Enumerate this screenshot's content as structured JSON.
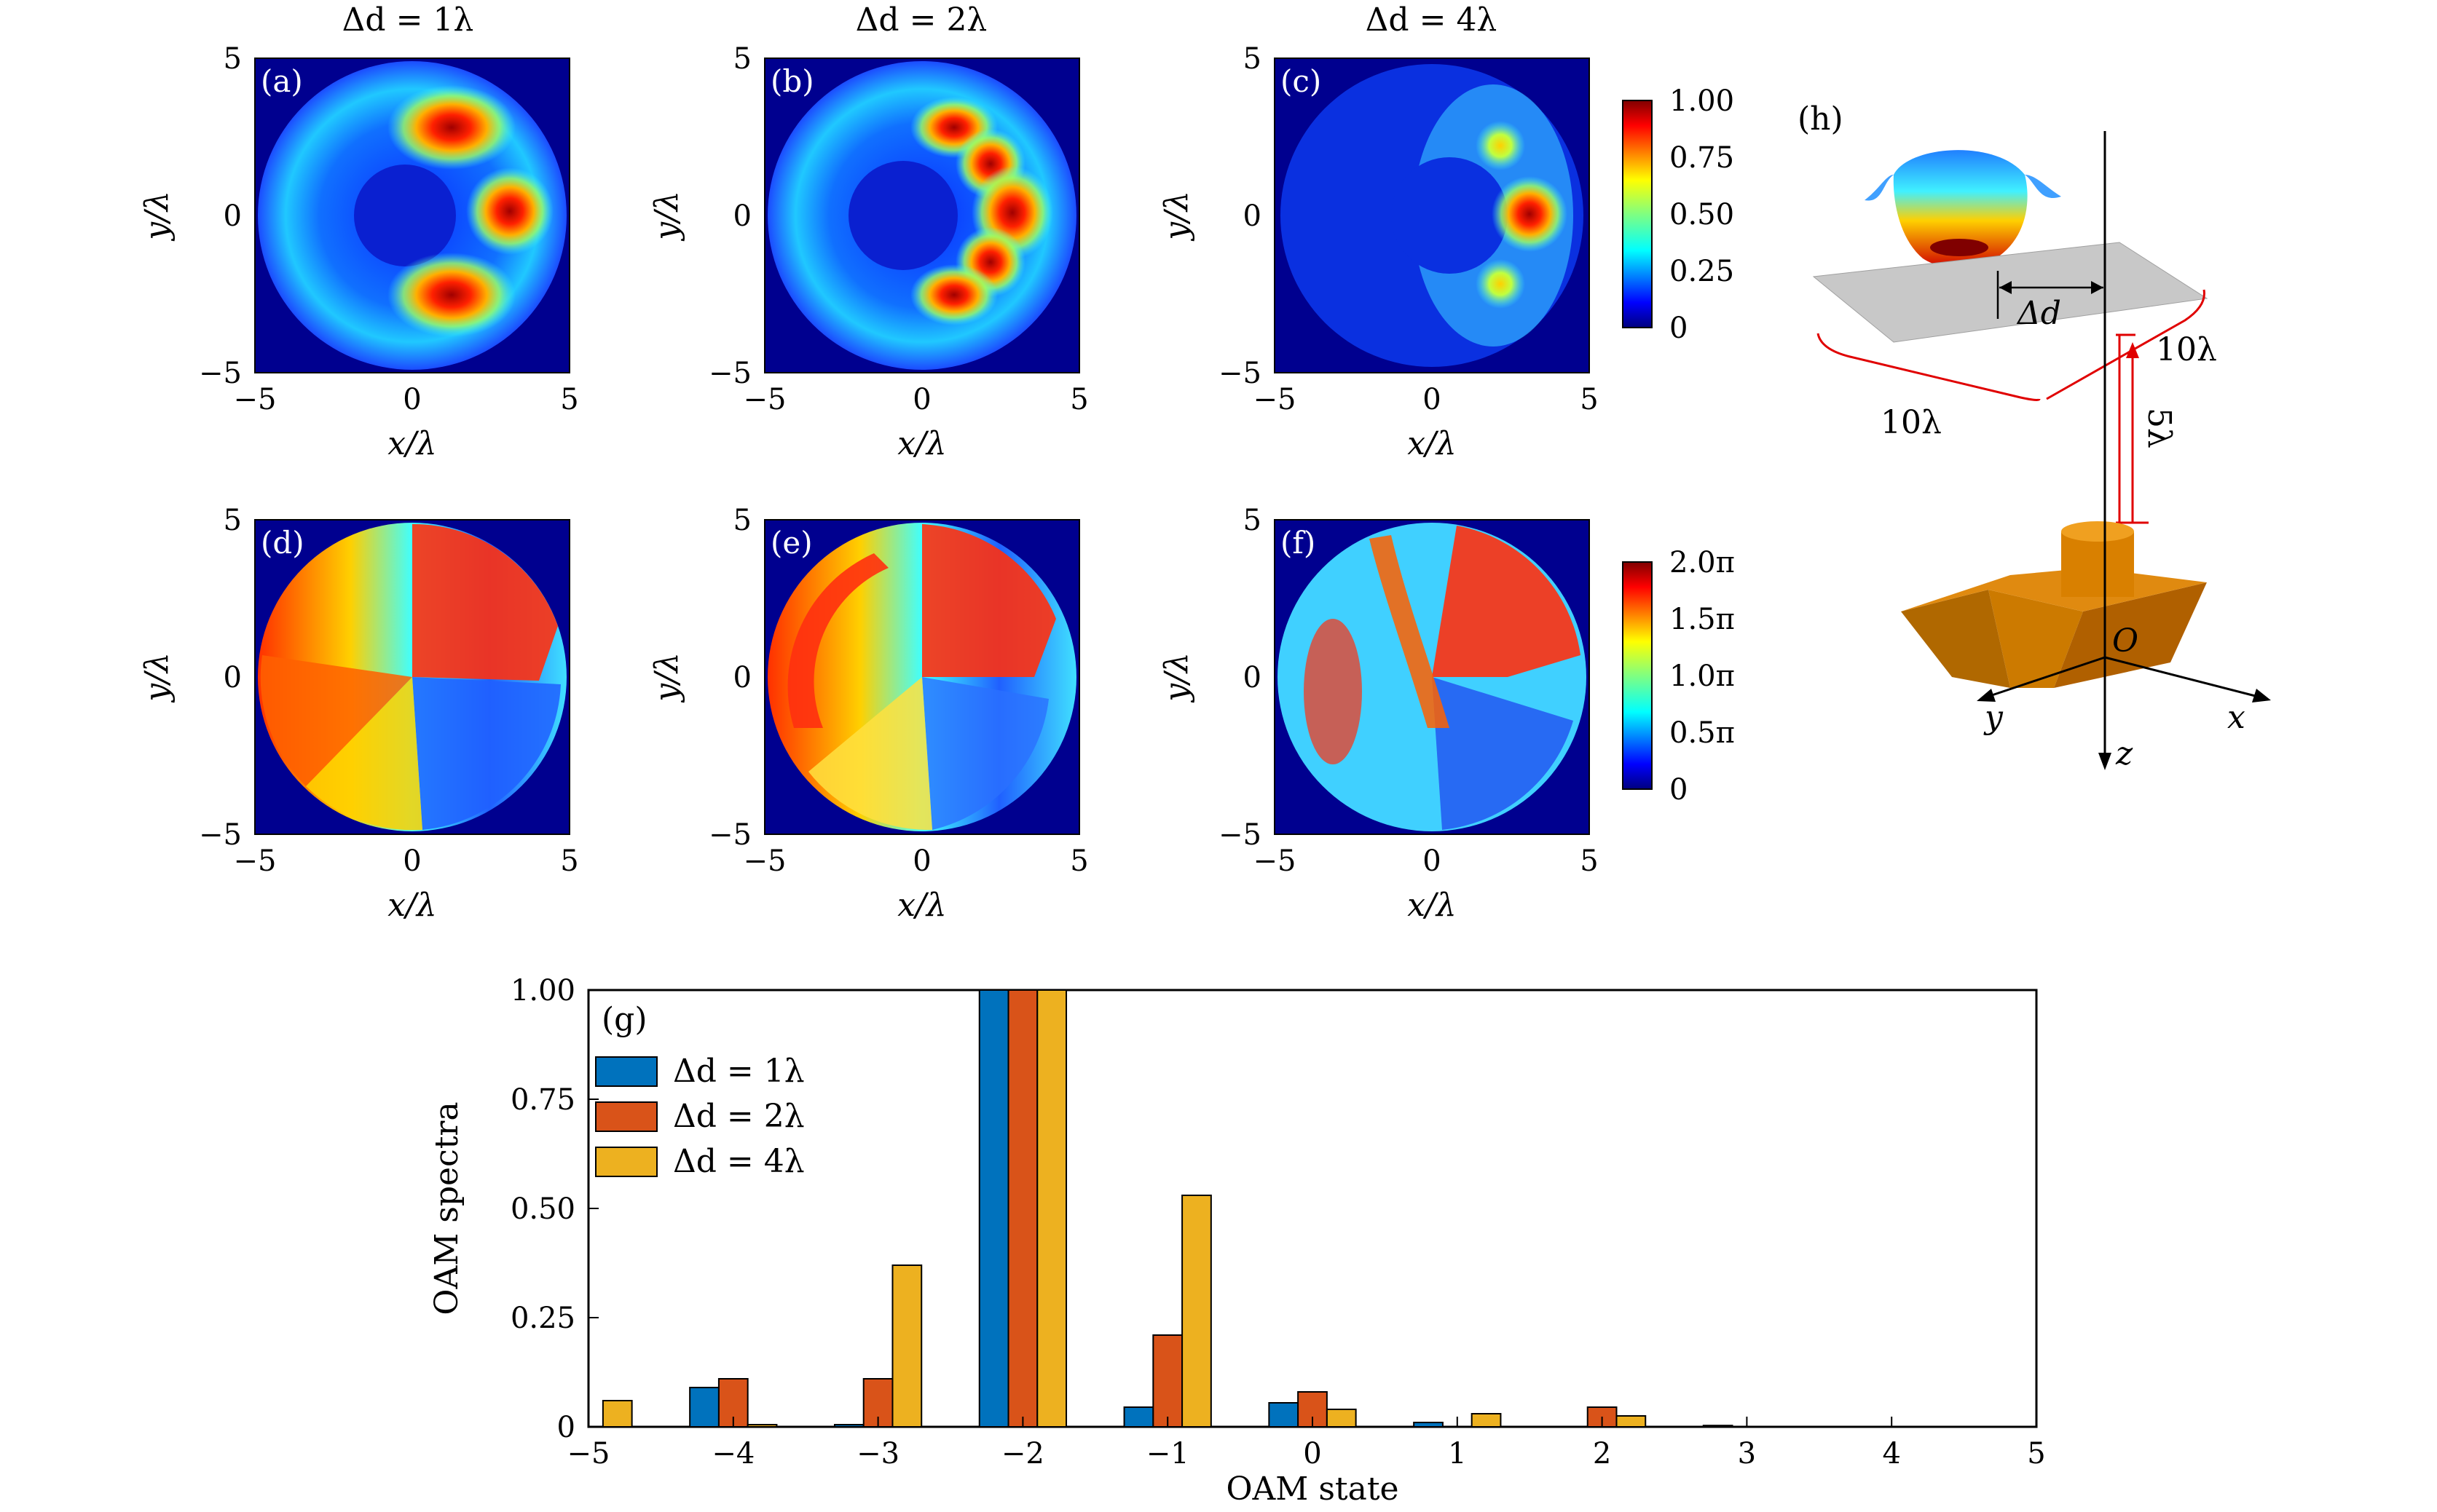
{
  "panel_titles": [
    "Δd = 1λ",
    "Δd = 2λ",
    "Δd = 4λ"
  ],
  "panel_labels": [
    "(a)",
    "(b)",
    "(c)",
    "(d)",
    "(e)",
    "(f)",
    "(g)",
    "(h)"
  ],
  "map_axes": {
    "xlabel": "x/λ",
    "ylabel": "y/λ",
    "x_ticks": [
      "−5",
      "0",
      "5"
    ],
    "y_ticks": [
      "5",
      "0",
      "−5"
    ]
  },
  "colorbars": {
    "intensity_ticks": [
      "1.00",
      "0.75",
      "0.50",
      "0.25",
      "0"
    ],
    "phase_ticks": [
      "2.0π",
      "1.5π",
      "1.0π",
      "0.5π",
      "0"
    ]
  },
  "schematic": {
    "delta_label": "Δd",
    "width_label": "10λ",
    "depth_label": "10λ",
    "height_label": "5λ",
    "origin_label": "O",
    "x_axis_label": "x",
    "y_axis_label": "y",
    "z_axis_label": "z"
  },
  "chart_data": {
    "type": "bar",
    "xlabel": "OAM state",
    "ylabel": "OAM spectra",
    "xlim": [
      -5,
      5
    ],
    "ylim": [
      0,
      1
    ],
    "x_ticks": [
      "−5",
      "−4",
      "−3",
      "−2",
      "−1",
      "0",
      "1",
      "2",
      "3",
      "4",
      "5"
    ],
    "y_ticks": [
      "0",
      "0.25",
      "0.50",
      "0.75",
      "1.00"
    ],
    "categories": [
      -5,
      -4,
      -3,
      -2,
      -1,
      0,
      1,
      2,
      3,
      4,
      5
    ],
    "legend_position": "top-left",
    "series": [
      {
        "name": "Δd = 1λ",
        "color": "#0072BD",
        "values": [
          0,
          0.09,
          0.005,
          1.0,
          0.045,
          0.055,
          0.01,
          0,
          0.003,
          0,
          0
        ]
      },
      {
        "name": "Δd = 2λ",
        "color": "#D95319",
        "values": [
          0,
          0.11,
          0.11,
          1.0,
          0.21,
          0.08,
          0,
          0.045,
          0,
          0,
          0
        ]
      },
      {
        "name": "Δd = 4λ",
        "color": "#EDB120",
        "values": [
          0.06,
          0.005,
          0.37,
          1.0,
          0.53,
          0.04,
          0.03,
          0.025,
          0,
          0,
          0
        ]
      }
    ]
  }
}
